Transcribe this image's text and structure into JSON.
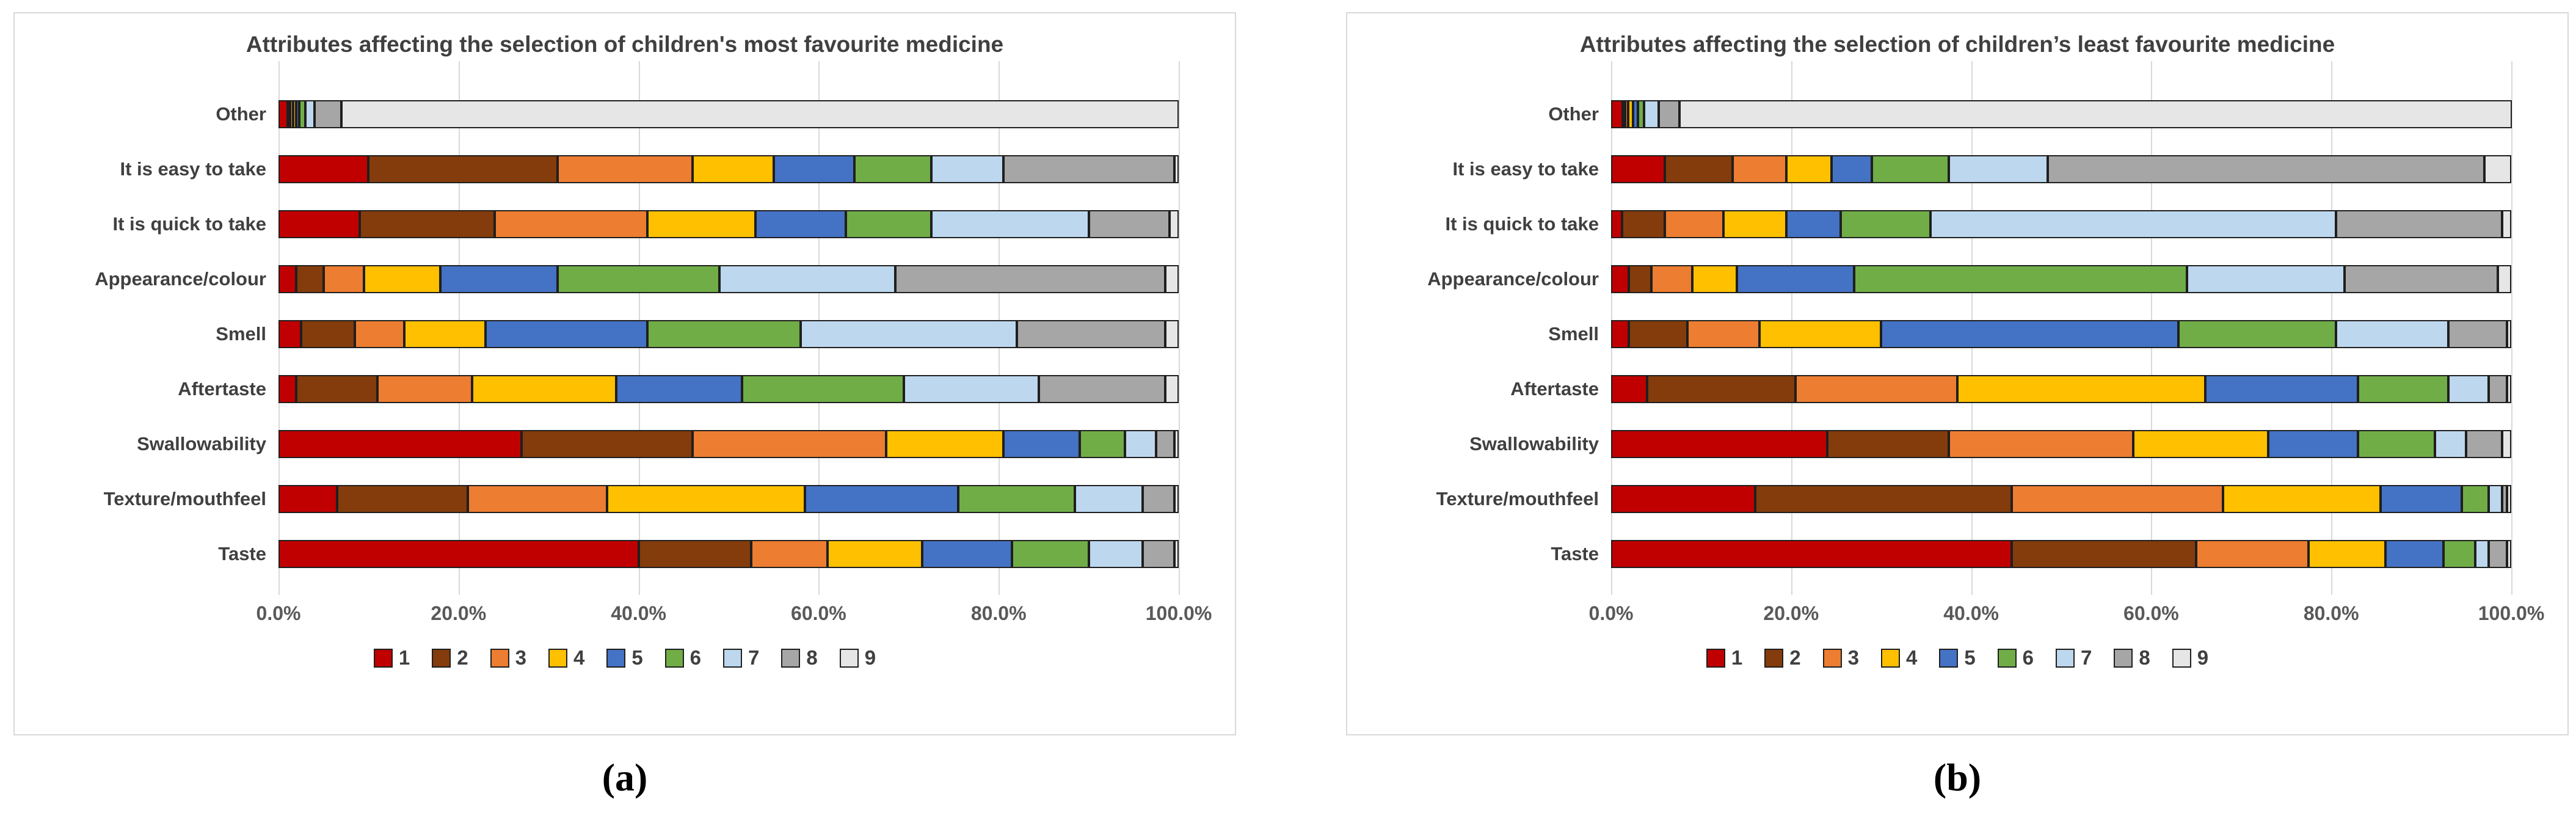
{
  "palette": {
    "segment_border": "#1f1f1f",
    "gridline": "#d9d9d9",
    "panel_border": "#d9d9d9",
    "title_text": "#404040",
    "tick_text": "#595959"
  },
  "chart_data": [
    {
      "type": "bar",
      "orientation": "horizontal-stacked",
      "title": "Attributes affecting the selection of children's most favourite medicine",
      "caption": "(a)",
      "categories_top_to_bottom": [
        "Other",
        "It is easy to take",
        "It is quick to take",
        "Appearance/colour",
        "Smell",
        "Aftertaste",
        "Swallowability",
        "Texture/mouthfeel",
        "Taste"
      ],
      "x_axis": {
        "min": 0,
        "max": 100,
        "unit": "%",
        "ticks": [
          "0.0%",
          "20.0%",
          "40.0%",
          "60.0%",
          "80.0%",
          "100.0%"
        ],
        "grid": true
      },
      "legend": {
        "position": "bottom",
        "labels": [
          "1",
          "2",
          "3",
          "4",
          "5",
          "6",
          "7",
          "8",
          "9"
        ]
      },
      "series": [
        {
          "name": "1",
          "color": "#C00000",
          "values": [
            1,
            10,
            9,
            2,
            2.5,
            2,
            27,
            6.5,
            40
          ]
        },
        {
          "name": "2",
          "color": "#843C0C",
          "values": [
            0.3,
            21,
            15,
            3,
            6,
            9,
            19,
            14.5,
            12.5
          ]
        },
        {
          "name": "3",
          "color": "#ED7D31",
          "values": [
            0.3,
            15,
            17,
            4.5,
            5.5,
            10.5,
            21.5,
            15.5,
            8.5
          ]
        },
        {
          "name": "4",
          "color": "#FFC000",
          "values": [
            0.4,
            9,
            12,
            8.5,
            9,
            16,
            13,
            22,
            10.5
          ]
        },
        {
          "name": "5",
          "color": "#4472C4",
          "values": [
            0.3,
            9,
            10,
            13,
            18,
            14,
            8.5,
            17,
            10
          ]
        },
        {
          "name": "6",
          "color": "#70AD47",
          "values": [
            0.7,
            8.5,
            9.5,
            18,
            17,
            18,
            5,
            13,
            8.5
          ]
        },
        {
          "name": "7",
          "color": "#BDD7EE",
          "values": [
            1,
            8,
            17.5,
            19.5,
            24,
            15,
            3.5,
            7.5,
            6
          ]
        },
        {
          "name": "8",
          "color": "#A6A6A6",
          "values": [
            3,
            19,
            9,
            30,
            16.5,
            14,
            2,
            3.5,
            3.5
          ]
        },
        {
          "name": "9",
          "color": "#E7E6E6",
          "values": [
            93,
            0.5,
            1,
            1.5,
            1.5,
            1.5,
            0.5,
            0.5,
            0.5
          ]
        }
      ]
    },
    {
      "type": "bar",
      "orientation": "horizontal-stacked",
      "title": "Attributes affecting the selection of children’s least favourite medicine",
      "caption": "(b)",
      "categories_top_to_bottom": [
        "Other",
        "It is easy to take",
        "It is quick to take",
        "Appearance/colour",
        "Smell",
        "Aftertaste",
        "Swallowability",
        "Texture/mouthfeel",
        "Taste"
      ],
      "x_axis": {
        "min": 0,
        "max": 100,
        "unit": "%",
        "ticks": [
          "0.0%",
          "20.0%",
          "40.0%",
          "60.0%",
          "80.0%",
          "100.0%"
        ],
        "grid": true
      },
      "legend": {
        "position": "bottom",
        "labels": [
          "1",
          "2",
          "3",
          "4",
          "5",
          "6",
          "7",
          "8",
          "9"
        ]
      },
      "series": [
        {
          "name": "1",
          "color": "#C00000",
          "values": [
            1.3,
            6,
            1.2,
            2,
            2,
            4,
            24,
            16,
            44.5
          ]
        },
        {
          "name": "2",
          "color": "#843C0C",
          "values": [
            0.2,
            7.5,
            4.8,
            2.5,
            6.5,
            16.5,
            13.5,
            28.5,
            20.5
          ]
        },
        {
          "name": "3",
          "color": "#ED7D31",
          "values": [
            0.3,
            6,
            6.5,
            4.5,
            8,
            18,
            20.5,
            23.5,
            12.5
          ]
        },
        {
          "name": "4",
          "color": "#FFC000",
          "values": [
            0.6,
            5,
            7,
            5,
            13.5,
            27.5,
            15,
            17.5,
            8.5
          ]
        },
        {
          "name": "5",
          "color": "#4472C4",
          "values": [
            0.5,
            4.5,
            6,
            13,
            33,
            17,
            10,
            9,
            6.5
          ]
        },
        {
          "name": "6",
          "color": "#70AD47",
          "values": [
            0.7,
            8.5,
            10,
            37,
            17.5,
            10,
            8.5,
            3,
            3.5
          ]
        },
        {
          "name": "7",
          "color": "#BDD7EE",
          "values": [
            1.6,
            11,
            45,
            17.5,
            12.5,
            4.5,
            3.5,
            1.5,
            1.5
          ]
        },
        {
          "name": "8",
          "color": "#A6A6A6",
          "values": [
            2.3,
            48.5,
            18.5,
            17,
            6.5,
            2,
            4,
            0.5,
            2
          ]
        },
        {
          "name": "9",
          "color": "#E7E6E6",
          "values": [
            92.5,
            3,
            1,
            1.5,
            0.5,
            0.5,
            1,
            0.5,
            0.5
          ]
        }
      ]
    }
  ]
}
